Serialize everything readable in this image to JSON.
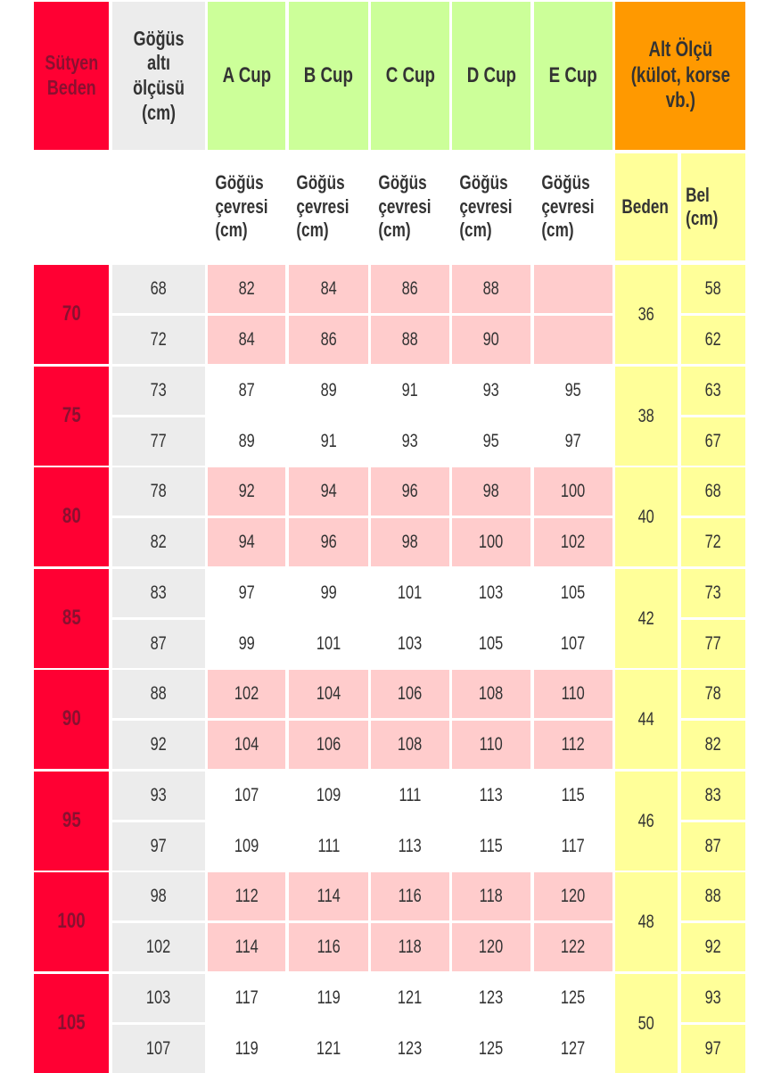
{
  "headers": {
    "bra_size": "Sütyen\nBeden",
    "underbust": "Göğüs\naltı\nölçüsü\n(cm)",
    "cups": [
      "A Cup",
      "B Cup",
      "C Cup",
      "D Cup",
      "E Cup"
    ],
    "lower": "Alt Ölçü\n(külot, korse\nvb.)",
    "bust_sub": "Göğüs\nçevresi\n(cm)",
    "size_sub": "Beden",
    "waist_sub": "Bel\n(cm)"
  },
  "groups": [
    {
      "size": "70",
      "rows": [
        [
          "68",
          "82",
          "84",
          "86",
          "88",
          ""
        ],
        [
          "72",
          "84",
          "86",
          "88",
          "90",
          ""
        ]
      ],
      "lower_size": "36",
      "waist": [
        "58",
        "62"
      ]
    },
    {
      "size": "75",
      "rows": [
        [
          "73",
          "87",
          "89",
          "91",
          "93",
          "95"
        ],
        [
          "77",
          "89",
          "91",
          "93",
          "95",
          "97"
        ]
      ],
      "lower_size": "38",
      "waist": [
        "63",
        "67"
      ]
    },
    {
      "size": "80",
      "rows": [
        [
          "78",
          "92",
          "94",
          "96",
          "98",
          "100"
        ],
        [
          "82",
          "94",
          "96",
          "98",
          "100",
          "102"
        ]
      ],
      "lower_size": "40",
      "waist": [
        "68",
        "72"
      ]
    },
    {
      "size": "85",
      "rows": [
        [
          "83",
          "97",
          "99",
          "101",
          "103",
          "105"
        ],
        [
          "87",
          "99",
          "101",
          "103",
          "105",
          "107"
        ]
      ],
      "lower_size": "42",
      "waist": [
        "73",
        "77"
      ]
    },
    {
      "size": "90",
      "rows": [
        [
          "88",
          "102",
          "104",
          "106",
          "108",
          "110"
        ],
        [
          "92",
          "104",
          "106",
          "108",
          "110",
          "112"
        ]
      ],
      "lower_size": "44",
      "waist": [
        "78",
        "82"
      ]
    },
    {
      "size": "95",
      "rows": [
        [
          "93",
          "107",
          "109",
          "111",
          "113",
          "115"
        ],
        [
          "97",
          "109",
          "111",
          "113",
          "115",
          "117"
        ]
      ],
      "lower_size": "46",
      "waist": [
        "83",
        "87"
      ]
    },
    {
      "size": "100",
      "rows": [
        [
          "98",
          "112",
          "114",
          "116",
          "118",
          "120"
        ],
        [
          "102",
          "114",
          "116",
          "118",
          "120",
          "122"
        ]
      ],
      "lower_size": "48",
      "waist": [
        "88",
        "92"
      ]
    },
    {
      "size": "105",
      "rows": [
        [
          "103",
          "117",
          "119",
          "121",
          "123",
          "125"
        ],
        [
          "107",
          "119",
          "121",
          "123",
          "125",
          "127"
        ]
      ],
      "lower_size": "50",
      "waist": [
        "93",
        "97"
      ]
    }
  ],
  "colors": {
    "size_red": "#ff0033",
    "cup_green": "#ccff99",
    "lower_orange": "#ff9900",
    "row_pink": "#ffcccc",
    "lower_yellow": "#ffff99",
    "underbust_grey": "#ececec"
  }
}
